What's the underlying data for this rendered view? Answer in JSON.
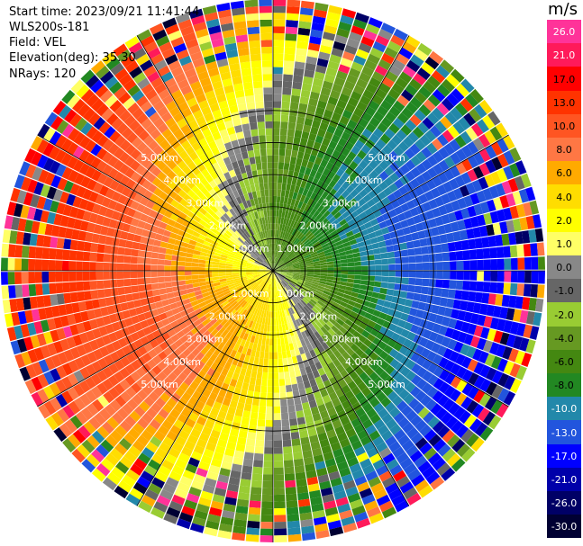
{
  "info": {
    "start_time": "Start time: 2023/09/21 11:41:44",
    "instrument": "WLS200s-181",
    "field": "Field: VEL",
    "elevation": "Elevation(deg): 35.30",
    "nrays": "NRays: 120"
  },
  "colorbar": {
    "unit": "m/s",
    "ticks": [
      "26.0",
      "21.0",
      "17.0",
      "13.0",
      "10.0",
      "8.0",
      "6.0",
      "4.0",
      "2.0",
      "1.0",
      "0.0",
      "-1.0",
      "-2.0",
      "-4.0",
      "-6.0",
      "-8.0",
      "-10.0",
      "-13.0",
      "-17.0",
      "-21.0",
      "-26.0",
      "-30.0"
    ],
    "colors": [
      "#ff3399",
      "#ff1a5a",
      "#ff0000",
      "#ff3300",
      "#ff5522",
      "#ff7744",
      "#ffaa00",
      "#ffdd00",
      "#ffff00",
      "#ffff66",
      "#888888",
      "#666666",
      "#99cc33",
      "#669922",
      "#448811",
      "#228822",
      "#2288aa",
      "#2255dd",
      "#0000ff",
      "#0000aa",
      "#000066",
      "#000033"
    ]
  },
  "chart_data": {
    "type": "ppi",
    "field": "VEL",
    "units": "m/s",
    "nrays": 120,
    "elevation_deg": 35.3,
    "range_rings_km": [
      1.0,
      2.0,
      3.0,
      4.0,
      5.0
    ],
    "range_ring_labels": [
      "1.00km",
      "2.00km",
      "3.00km",
      "4.00km",
      "5.00km"
    ],
    "max_range_km": 5.0,
    "color_levels": [
      -30.0,
      -26.0,
      -21.0,
      -17.0,
      -13.0,
      -10.0,
      -8.0,
      -6.0,
      -4.0,
      -2.0,
      -1.0,
      0.0,
      1.0,
      2.0,
      4.0,
      6.0,
      8.0,
      10.0,
      13.0,
      17.0,
      21.0,
      26.0
    ]
  }
}
